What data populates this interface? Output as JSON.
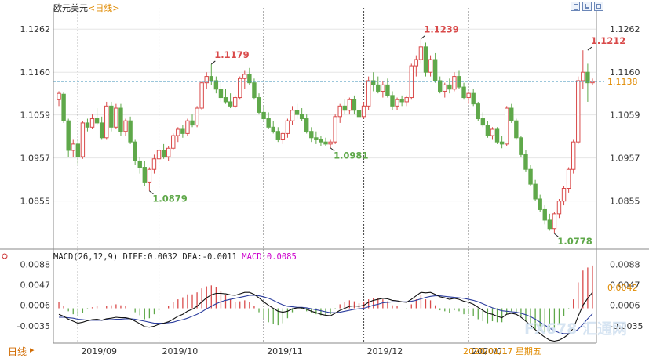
{
  "header": {
    "title": "欧元美元",
    "period_label": "<日线>"
  },
  "toolbar": {
    "buttons": [
      {
        "name": "toolbar-button-1",
        "icon": "layout-icon"
      },
      {
        "name": "toolbar-button-2",
        "icon": "resize-icon"
      },
      {
        "name": "toolbar-button-3",
        "icon": "grid-icon"
      }
    ]
  },
  "macd": {
    "label": "MACD(26,12,9)",
    "diff_label": "DIFF:0.0032",
    "dea_label": "DEA:-0.0011",
    "macd_label": "MACD:0.0085"
  },
  "footer": {
    "period_tab": "日线",
    "date_label": "2020/01/17",
    "weekday_label": "星期五",
    "watermark": "FX678 汇通网"
  },
  "colors": {
    "up": "#d94a4a",
    "down": "#5fa84a",
    "diff_line": "#111111",
    "dea_line": "#2c3e9e",
    "price_line": "#3a8fb7",
    "current_price_bg": "#ffffff",
    "current_price_text": "#e08a00",
    "macd_text": "#cc00cc",
    "date_text": "#e08a00",
    "grid": "#444444"
  },
  "chart_data": [
    {
      "type": "candlestick",
      "title": "欧元美元",
      "period": "daily",
      "y_ticks": [
        "1.1262",
        "1.1160",
        "1.1059",
        "1.0957",
        "1.0855"
      ],
      "ylim": [
        1.0745,
        1.1305
      ],
      "x_labels": [
        "2019/09",
        "2019/10",
        "2019/11",
        "2019/12",
        "2020/01"
      ],
      "current_price": 1.1138,
      "current_price_label": "1.1138",
      "annotations": [
        {
          "label": "1.1179",
          "value": 1.1179,
          "bar": 32,
          "kind": "high"
        },
        {
          "label": "1.0879",
          "value": 1.0879,
          "bar": 19,
          "kind": "low"
        },
        {
          "label": "1.0981",
          "value": 1.0981,
          "bar": 57,
          "kind": "low"
        },
        {
          "label": "1.1239",
          "value": 1.1239,
          "bar": 76,
          "kind": "high"
        },
        {
          "label": "1.0778",
          "value": 1.0778,
          "bar": 104,
          "kind": "low"
        },
        {
          "label": "1.1212",
          "value": 1.1212,
          "bar": 111,
          "kind": "high"
        }
      ],
      "grid": true,
      "candles": [
        [
          1.1095,
          1.1115,
          1.108,
          1.111
        ],
        [
          1.1108,
          1.1112,
          1.104,
          1.1045
        ],
        [
          1.1045,
          1.105,
          1.096,
          1.0975
        ],
        [
          1.0975,
          1.1,
          1.096,
          1.099
        ],
        [
          1.099,
          1.1,
          1.094,
          1.096
        ],
        [
          1.096,
          1.1045,
          1.0955,
          1.104
        ],
        [
          1.104,
          1.105,
          1.102,
          1.103
        ],
        [
          1.103,
          1.106,
          1.1025,
          1.105
        ],
        [
          1.105,
          1.1075,
          1.1035,
          1.104
        ],
        [
          1.104,
          1.1055,
          1.1,
          1.1005
        ],
        [
          1.1005,
          1.109,
          1.1,
          1.108
        ],
        [
          1.108,
          1.109,
          1.102,
          1.103
        ],
        [
          1.103,
          1.1085,
          1.1025,
          1.1075
        ],
        [
          1.1075,
          1.1085,
          1.101,
          1.102
        ],
        [
          1.102,
          1.105,
          1.101,
          1.1045
        ],
        [
          1.1045,
          1.1055,
          1.099,
          1.0995
        ],
        [
          1.0995,
          1.1,
          1.094,
          1.095
        ],
        [
          1.095,
          1.096,
          1.092,
          1.0935
        ],
        [
          1.0935,
          1.095,
          1.089,
          1.09
        ],
        [
          1.09,
          1.0935,
          1.0879,
          1.093
        ],
        [
          1.093,
          1.0965,
          1.092,
          1.0955
        ],
        [
          1.0955,
          1.098,
          1.0945,
          1.0975
        ],
        [
          1.0975,
          1.099,
          1.0955,
          1.096
        ],
        [
          1.096,
          1.0985,
          1.095,
          1.098
        ],
        [
          1.098,
          1.1015,
          1.0975,
          1.101
        ],
        [
          1.101,
          1.103,
          1.0995,
          1.1025
        ],
        [
          1.1025,
          1.1035,
          1.1005,
          1.1015
        ],
        [
          1.1015,
          1.105,
          1.101,
          1.1045
        ],
        [
          1.1045,
          1.106,
          1.103,
          1.1035
        ],
        [
          1.1035,
          1.108,
          1.103,
          1.1075
        ],
        [
          1.1075,
          1.114,
          1.107,
          1.1135
        ],
        [
          1.1135,
          1.116,
          1.112,
          1.115
        ],
        [
          1.115,
          1.1179,
          1.113,
          1.114
        ],
        [
          1.114,
          1.115,
          1.111,
          1.112
        ],
        [
          1.112,
          1.1135,
          1.109,
          1.11
        ],
        [
          1.11,
          1.112,
          1.1085,
          1.109
        ],
        [
          1.109,
          1.111,
          1.1075,
          1.108
        ],
        [
          1.108,
          1.1105,
          1.1075,
          1.11
        ],
        [
          1.11,
          1.115,
          1.1095,
          1.1145
        ],
        [
          1.1145,
          1.1165,
          1.112,
          1.1155
        ],
        [
          1.1155,
          1.117,
          1.113,
          1.1135
        ],
        [
          1.1135,
          1.1145,
          1.1095,
          1.11
        ],
        [
          1.11,
          1.111,
          1.106,
          1.1065
        ],
        [
          1.1065,
          1.108,
          1.1045,
          1.105
        ],
        [
          1.105,
          1.1065,
          1.1025,
          1.103
        ],
        [
          1.103,
          1.1045,
          1.1015,
          1.102
        ],
        [
          1.102,
          1.103,
          1.0995,
          1.1
        ],
        [
          1.1,
          1.102,
          1.099,
          1.1015
        ],
        [
          1.1015,
          1.105,
          1.1005,
          1.1045
        ],
        [
          1.1045,
          1.108,
          1.1035,
          1.107
        ],
        [
          1.107,
          1.1085,
          1.105,
          1.106
        ],
        [
          1.106,
          1.1075,
          1.1045,
          1.105
        ],
        [
          1.105,
          1.106,
          1.1015,
          1.102
        ],
        [
          1.102,
          1.103,
          1.0995,
          1.1005
        ],
        [
          1.1005,
          1.102,
          1.099,
          1.1
        ],
        [
          1.1,
          1.101,
          1.0985,
          1.0995
        ],
        [
          1.0995,
          1.1005,
          1.0985,
          1.099
        ],
        [
          1.099,
          1.1,
          1.0981,
          1.0995
        ],
        [
          1.0995,
          1.106,
          1.099,
          1.1055
        ],
        [
          1.1055,
          1.1085,
          1.104,
          1.108
        ],
        [
          1.108,
          1.1095,
          1.106,
          1.107
        ],
        [
          1.107,
          1.11,
          1.106,
          1.1095
        ],
        [
          1.1095,
          1.1105,
          1.106,
          1.107
        ],
        [
          1.107,
          1.108,
          1.1045,
          1.1055
        ],
        [
          1.1055,
          1.109,
          1.105,
          1.108
        ],
        [
          1.108,
          1.115,
          1.107,
          1.114
        ],
        [
          1.114,
          1.116,
          1.1115,
          1.113
        ],
        [
          1.113,
          1.115,
          1.111,
          1.1115
        ],
        [
          1.1115,
          1.114,
          1.11,
          1.113
        ],
        [
          1.113,
          1.1145,
          1.11,
          1.1105
        ],
        [
          1.1105,
          1.1115,
          1.107,
          1.108
        ],
        [
          1.108,
          1.11,
          1.107,
          1.1095
        ],
        [
          1.1095,
          1.1105,
          1.108,
          1.109
        ],
        [
          1.109,
          1.1105,
          1.108,
          1.11
        ],
        [
          1.11,
          1.118,
          1.1095,
          1.1175
        ],
        [
          1.1175,
          1.12,
          1.115,
          1.119
        ],
        [
          1.119,
          1.1239,
          1.118,
          1.122
        ],
        [
          1.122,
          1.123,
          1.115,
          1.116
        ],
        [
          1.116,
          1.12,
          1.115,
          1.119
        ],
        [
          1.119,
          1.1205,
          1.1135,
          1.114
        ],
        [
          1.114,
          1.115,
          1.111,
          1.1115
        ],
        [
          1.1115,
          1.1135,
          1.11,
          1.113
        ],
        [
          1.113,
          1.1145,
          1.111,
          1.112
        ],
        [
          1.112,
          1.116,
          1.1115,
          1.115
        ],
        [
          1.115,
          1.1165,
          1.112,
          1.1125
        ],
        [
          1.1125,
          1.1135,
          1.1095,
          1.11
        ],
        [
          1.11,
          1.1115,
          1.1085,
          1.111
        ],
        [
          1.111,
          1.112,
          1.108,
          1.1085
        ],
        [
          1.1085,
          1.109,
          1.1045,
          1.105
        ],
        [
          1.105,
          1.1065,
          1.103,
          1.1035
        ],
        [
          1.1035,
          1.1045,
          1.1005,
          1.101
        ],
        [
          1.101,
          1.103,
          1.1,
          1.1025
        ],
        [
          1.1025,
          1.103,
          1.099,
          1.0995
        ],
        [
          1.0995,
          1.101,
          1.098,
          1.099
        ],
        [
          1.099,
          1.108,
          1.0985,
          1.1075
        ],
        [
          1.1075,
          1.1085,
          1.104,
          1.1045
        ],
        [
          1.1045,
          1.105,
          1.1,
          1.1005
        ],
        [
          1.1005,
          1.101,
          1.096,
          1.0965
        ],
        [
          1.0965,
          1.0975,
          1.0925,
          1.093
        ],
        [
          1.093,
          1.094,
          1.089,
          1.0895
        ],
        [
          1.0895,
          1.0905,
          1.0855,
          1.086
        ],
        [
          1.086,
          1.087,
          1.083,
          1.0835
        ],
        [
          1.0835,
          1.0845,
          1.08,
          1.081
        ],
        [
          1.081,
          1.0825,
          1.0785,
          1.079
        ],
        [
          1.079,
          1.083,
          1.0778,
          1.0825
        ],
        [
          1.0825,
          1.086,
          1.0815,
          1.0855
        ],
        [
          1.0855,
          1.089,
          1.0845,
          1.0885
        ],
        [
          1.0885,
          1.0935,
          1.0875,
          1.093
        ],
        [
          1.093,
          1.1,
          1.092,
          1.0995
        ],
        [
          1.0995,
          1.115,
          1.099,
          1.114
        ],
        [
          1.114,
          1.1212,
          1.112,
          1.116
        ],
        [
          1.116,
          1.118,
          1.109,
          1.1135
        ],
        [
          1.1135,
          1.1145,
          1.113,
          1.1138
        ]
      ]
    },
    {
      "type": "macd",
      "params": [
        26,
        12,
        9
      ],
      "y_ticks": [
        "0.0088",
        "0.0047",
        "0.0006",
        "-0.0035"
      ],
      "ylim": [
        -0.007,
        0.01
      ],
      "diff": [
        -0.0012,
        -0.0016,
        -0.0022,
        -0.0026,
        -0.003,
        -0.0028,
        -0.0025,
        -0.0023,
        -0.0022,
        -0.0024,
        -0.0021,
        -0.002,
        -0.0018,
        -0.0019,
        -0.0019,
        -0.0021,
        -0.0026,
        -0.0031,
        -0.0037,
        -0.0038,
        -0.0036,
        -0.0032,
        -0.003,
        -0.0027,
        -0.0022,
        -0.0016,
        -0.0012,
        -0.0006,
        -0.0002,
        0.0004,
        0.0013,
        0.0021,
        0.0027,
        0.003,
        0.003,
        0.0029,
        0.0027,
        0.0026,
        0.0029,
        0.0032,
        0.0032,
        0.0028,
        0.0021,
        0.0013,
        0.0006,
        0.0,
        -0.0006,
        -0.0008,
        -0.0006,
        -0.0001,
        0.0001,
        0.0001,
        -0.0002,
        -0.0006,
        -0.0009,
        -0.0012,
        -0.0014,
        -0.0015,
        -0.001,
        -0.0004,
        0.0,
        0.0004,
        0.0005,
        0.0004,
        0.0006,
        0.0012,
        0.0016,
        0.0018,
        0.002,
        0.0019,
        0.0016,
        0.0015,
        0.0013,
        0.0012,
        0.0018,
        0.0025,
        0.0032,
        0.0031,
        0.0032,
        0.0028,
        0.0023,
        0.0021,
        0.0018,
        0.002,
        0.0018,
        0.0014,
        0.0012,
        0.0008,
        0.0002,
        -0.0004,
        -0.001,
        -0.0012,
        -0.0016,
        -0.0019,
        -0.0012,
        -0.001,
        -0.0012,
        -0.0018,
        -0.0026,
        -0.0034,
        -0.0043,
        -0.0051,
        -0.0058,
        -0.0064,
        -0.0066,
        -0.0064,
        -0.0059,
        -0.0052,
        -0.004,
        -0.0016,
        0.0006,
        0.002,
        0.0032
      ],
      "dea": [
        -0.0018,
        -0.0018,
        -0.0019,
        -0.002,
        -0.0022,
        -0.0023,
        -0.0024,
        -0.0024,
        -0.0024,
        -0.0024,
        -0.0023,
        -0.0023,
        -0.0022,
        -0.0022,
        -0.0021,
        -0.0021,
        -0.0022,
        -0.0024,
        -0.0026,
        -0.0028,
        -0.003,
        -0.003,
        -0.003,
        -0.0029,
        -0.0028,
        -0.0025,
        -0.0023,
        -0.002,
        -0.0016,
        -0.0012,
        -0.0007,
        -0.0001,
        0.0004,
        0.0009,
        0.0013,
        0.0016,
        0.0018,
        0.002,
        0.0022,
        0.0024,
        0.0026,
        0.0026,
        0.0025,
        0.0023,
        0.002,
        0.0016,
        0.0011,
        0.0007,
        0.0004,
        0.0003,
        0.0002,
        0.0002,
        0.0001,
        -0.0001,
        -0.0003,
        -0.0005,
        -0.0007,
        -0.0009,
        -0.0009,
        -0.0008,
        -0.0006,
        -0.0004,
        -0.0002,
        -0.0001,
        0.0,
        0.0003,
        0.0006,
        0.0008,
        0.0011,
        0.0012,
        0.0013,
        0.0013,
        0.0013,
        0.0013,
        0.0014,
        0.0016,
        0.0019,
        0.0022,
        0.0024,
        0.0025,
        0.0025,
        0.0024,
        0.0023,
        0.0022,
        0.0021,
        0.002,
        0.0018,
        0.0016,
        0.0013,
        0.0009,
        0.0005,
        0.0001,
        -0.0002,
        -0.0005,
        -0.0006,
        -0.0007,
        -0.0008,
        -0.001,
        -0.0013,
        -0.0017,
        -0.0022,
        -0.0028,
        -0.0034,
        -0.004,
        -0.0045,
        -0.0049,
        -0.0051,
        -0.0051,
        -0.0049,
        -0.0042,
        -0.0032,
        -0.0021,
        -0.0011
      ]
    }
  ]
}
